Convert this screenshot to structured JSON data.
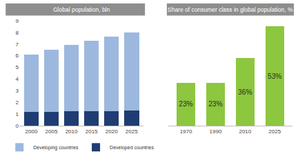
{
  "chart_data": [
    {
      "type": "bar",
      "title": "Global population, bln",
      "stacked": true,
      "categories": [
        "2000",
        "2005",
        "2010",
        "2015",
        "2020",
        "2025"
      ],
      "series": [
        {
          "name": "Developed countries",
          "color": "#1f3d73",
          "values": [
            1.19,
            1.21,
            1.23,
            1.25,
            1.27,
            1.29
          ]
        },
        {
          "name": "Developing countries",
          "color": "#9db8de",
          "values": [
            4.91,
            5.29,
            5.67,
            6.05,
            6.38,
            6.71
          ]
        }
      ],
      "ylim": [
        0,
        9
      ],
      "yticks": [
        0,
        1,
        2,
        3,
        4,
        5,
        6,
        7,
        8,
        9
      ],
      "grid": false,
      "legend": "bottom left"
    },
    {
      "type": "bar",
      "title": "Share of consumer class in global population, %",
      "categories": [
        "1970",
        "1990",
        "2010",
        "2025"
      ],
      "values": [
        23,
        23,
        36,
        53
      ],
      "value_labels": [
        "23%",
        "23%",
        "36%",
        "53%"
      ],
      "color": "#8dc63f",
      "ylim": [
        0,
        56
      ],
      "data_labels": true,
      "tick_labels": "x",
      "grid": false
    }
  ]
}
